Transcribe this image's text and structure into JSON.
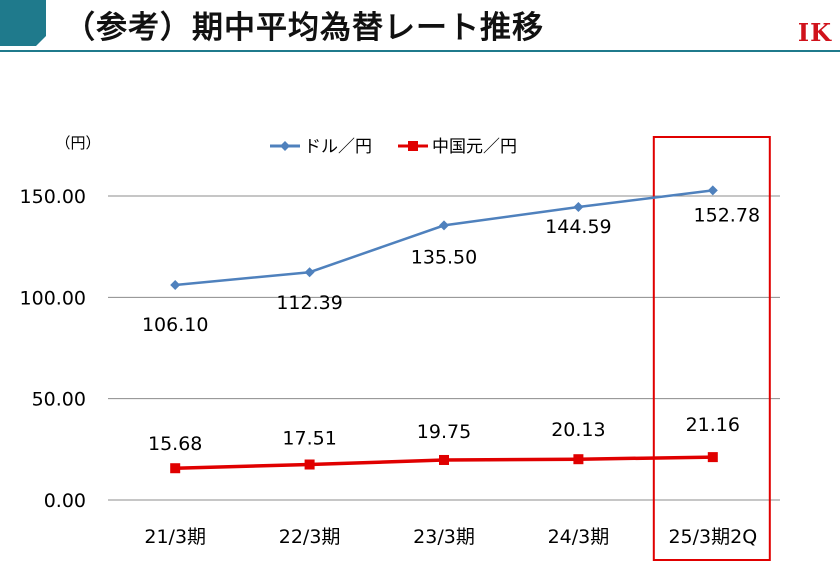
{
  "header": {
    "title": "（参考）期中平均為替レート推移",
    "logo_text": "IK",
    "accent_color": "#1f7a8c",
    "logo_color": "#d0121b"
  },
  "chart_data": {
    "type": "line",
    "categories": [
      "21/3期",
      "22/3期",
      "23/3期",
      "24/3期",
      "25/3期2Q"
    ],
    "series": [
      {
        "name": "ドル／円",
        "values": [
          106.1,
          112.39,
          135.5,
          144.59,
          152.78
        ],
        "labels": [
          "106.10",
          "112.39",
          "135.50",
          "144.59",
          "152.78"
        ],
        "color": "#4f81bd",
        "marker": "diamond"
      },
      {
        "name": "中国元／円",
        "values": [
          15.68,
          17.51,
          19.75,
          20.13,
          21.16
        ],
        "labels": [
          "15.68",
          "17.51",
          "19.75",
          "20.13",
          "21.16"
        ],
        "color": "#e00000",
        "marker": "square"
      }
    ],
    "yunit": "（円）",
    "ylim": [
      0,
      150
    ],
    "yticks": [
      "150.00",
      "100.00",
      "50.00",
      "0.00"
    ],
    "ytick_values": [
      150,
      100,
      50,
      0
    ],
    "grid": true,
    "legend": "top-center",
    "highlight_category": "25/3期2Q",
    "highlight_color": "#e00000"
  }
}
